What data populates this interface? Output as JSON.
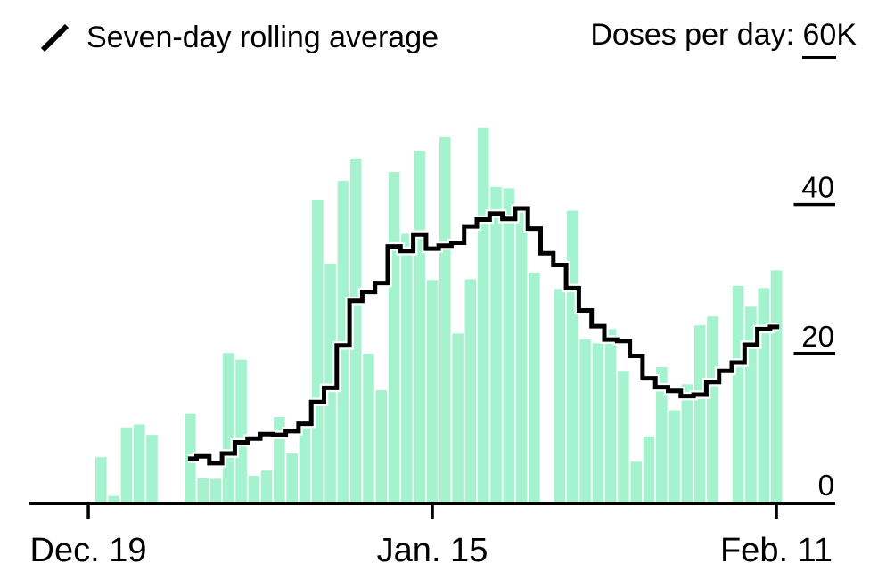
{
  "header": {
    "legend": {
      "label": "Seven-day rolling average"
    },
    "kicker": {
      "label": "Doses per day:",
      "value": "60",
      "unit": "K"
    }
  },
  "chart_data": {
    "type": "bar",
    "title": "Doses per day",
    "series": [
      {
        "name": "Doses per day",
        "type": "bar",
        "unit": "K doses",
        "values": [
          0,
          6.2,
          1.0,
          10.2,
          10.6,
          9.2,
          0,
          0,
          12.0,
          3.4,
          3.3,
          20.2,
          19.3,
          3.7,
          4.4,
          11.6,
          6.7,
          10.1,
          40.8,
          32.2,
          43.3,
          46.3,
          20.1,
          15.2,
          44.5,
          36.2,
          47.3,
          30.0,
          49.2,
          22.8,
          30.1,
          50.4,
          42.5,
          42.3,
          39.3,
          31.0,
          0,
          28.8,
          39.3,
          22.0,
          21.5,
          23.4,
          17.8,
          5.6,
          9.0,
          18.3,
          12.5,
          16.0,
          23.9,
          25.1,
          0,
          29.2,
          26.4,
          28.9,
          31.3
        ]
      },
      {
        "name": "Seven-day rolling average",
        "type": "step-line",
        "unit": "K doses",
        "start_day_index": 8,
        "values": [
          6.0,
          6.3,
          5.4,
          6.7,
          8.2,
          8.7,
          9.3,
          9.2,
          9.7,
          10.7,
          13.6,
          15.5,
          21.2,
          27.2,
          28.4,
          29.6,
          34.5,
          33.9,
          36.1,
          34.2,
          34.6,
          35.0,
          37.2,
          38.1,
          38.9,
          38.2,
          39.6,
          36.9,
          33.6,
          32.0,
          28.9,
          25.9,
          23.8,
          22.0,
          21.8,
          19.8,
          16.8,
          15.6,
          15.1,
          14.4,
          14.6,
          16.3,
          17.8,
          18.9,
          21.3,
          23.4,
          23.7
        ]
      }
    ],
    "x_axis": {
      "num_days": 55,
      "ticks": [
        {
          "label": "Dec. 19",
          "day_index": 0
        },
        {
          "label": "Jan. 15",
          "day_index": 27
        },
        {
          "label": "Feb. 11",
          "day_index": 54
        }
      ]
    },
    "y_axis": {
      "lim": [
        0,
        60
      ],
      "max_label": "60K",
      "ticks": [
        {
          "label": "40",
          "value": 40,
          "gridstub": true
        },
        {
          "label": "20",
          "value": 20,
          "gridstub": true
        },
        {
          "label": "0",
          "value": 0,
          "gridstub": false
        }
      ]
    },
    "colors": {
      "bar": "#a5f3ce",
      "line": "#000000",
      "line_casing": "#ffffff",
      "axis": "#000000",
      "text": "#000000"
    },
    "grid": false,
    "legend_position": "top-left"
  }
}
